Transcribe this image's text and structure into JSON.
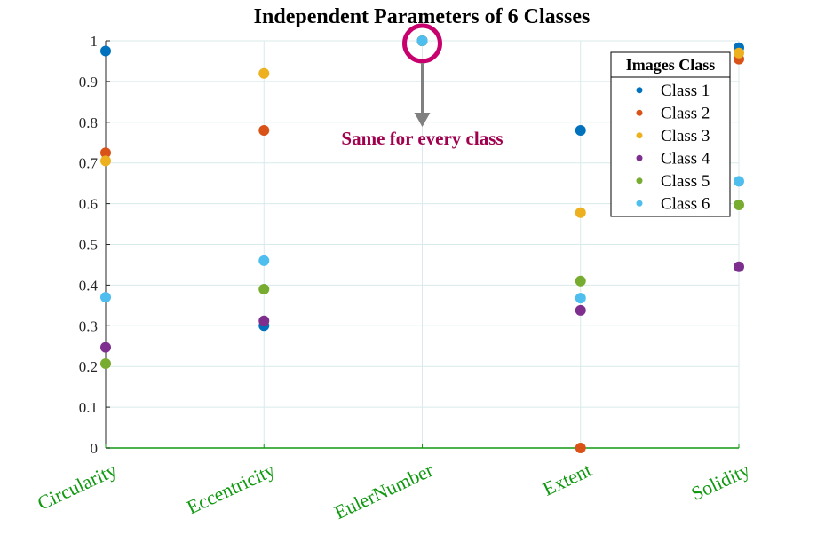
{
  "chart_data": {
    "type": "scatter",
    "title": "Independent Parameters of 6 Classes",
    "categories": [
      "Circularity",
      "Eccentricity",
      "EulerNumber",
      "Extent",
      "Solidity"
    ],
    "ylim": [
      0,
      1
    ],
    "yticks": [
      0,
      0.1,
      0.2,
      0.3,
      0.4,
      0.5,
      0.6,
      0.7,
      0.8,
      0.9,
      1
    ],
    "ytick_labels": [
      "0",
      "0.1",
      "0.2",
      "0.3",
      "0.4",
      "0.5",
      "0.6",
      "0.7",
      "0.8",
      "0.9",
      "1"
    ],
    "grid": true,
    "legend": {
      "title": "Images Class",
      "position": "top-right"
    },
    "series": [
      {
        "name": "Class 1",
        "color": "#0072BD",
        "values": [
          0.975,
          0.3,
          1.0,
          0.78,
          0.983
        ]
      },
      {
        "name": "Class 2",
        "color": "#D95319",
        "values": [
          0.725,
          0.78,
          1.0,
          0.0,
          0.955
        ]
      },
      {
        "name": "Class 3",
        "color": "#EDB120",
        "values": [
          0.705,
          0.92,
          1.0,
          0.578,
          0.97
        ]
      },
      {
        "name": "Class 4",
        "color": "#7E2F8E",
        "values": [
          0.247,
          0.312,
          1.0,
          0.338,
          0.445
        ]
      },
      {
        "name": "Class 5",
        "color": "#77AC30",
        "values": [
          0.207,
          0.39,
          1.0,
          0.41,
          0.597
        ]
      },
      {
        "name": "Class 6",
        "color": "#4DBEEE",
        "values": [
          0.37,
          0.46,
          1.0,
          0.368,
          0.655
        ]
      }
    ],
    "annotation": {
      "text": "Same for every class",
      "category": "EulerNumber",
      "value": 1.0,
      "circle_color": "#C8006E",
      "text_color": "#A0004E",
      "arrow_color": "#808080"
    },
    "colors": {
      "xaxis_line": "#119911",
      "xtick_label": "#119911",
      "grid": "#d8eaea",
      "axis": "#262626"
    }
  }
}
